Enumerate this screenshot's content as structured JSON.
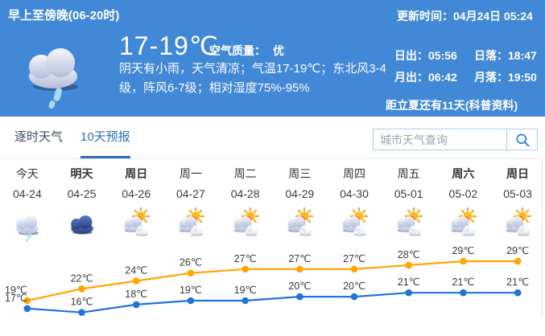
{
  "banner": {
    "period_label": "早上至傍晚(06-20时)",
    "weather_icon": "rain-cloud-icon",
    "temp_range": "17-19℃",
    "air_quality_label": "空气质量：",
    "air_quality_value": "优",
    "description": "阴天有小雨，天气清凉；气温17-19℃；东北风3-4级，阵风6-7级；相对湿度75%-95%",
    "update_time": "更新时间：04月24日 05:24",
    "sunrise": "日出：05:56",
    "sunset": "日落：18:47",
    "moonrise": "月出：06:42",
    "moonset": "月落：19:50",
    "solar_term_note": "距立夏还有11天",
    "solar_term_link": "(科普资料)"
  },
  "tabs": {
    "hourly": "逐时天气",
    "ten_day": "10天预报",
    "active": "10天预报"
  },
  "search": {
    "placeholder": "城市天气查询",
    "icon": "search-icon"
  },
  "forecast": {
    "columns": [
      {
        "weekday": "今天",
        "date": "04-24",
        "icon": "light-rain-icon",
        "bold": false
      },
      {
        "weekday": "明天",
        "date": "04-25",
        "icon": "overcast-icon",
        "bold": true
      },
      {
        "weekday": "周日",
        "date": "04-26",
        "icon": "sun-cloud-icon",
        "bold": true
      },
      {
        "weekday": "周一",
        "date": "04-27",
        "icon": "sun-cloud-icon",
        "bold": false
      },
      {
        "weekday": "周二",
        "date": "04-28",
        "icon": "sun-cloud-icon",
        "bold": false
      },
      {
        "weekday": "周三",
        "date": "04-29",
        "icon": "sun-cloud-icon",
        "bold": false
      },
      {
        "weekday": "周四",
        "date": "04-30",
        "icon": "sun-cloud-icon",
        "bold": false
      },
      {
        "weekday": "周五",
        "date": "05-01",
        "icon": "sun-cloud-icon",
        "bold": false
      },
      {
        "weekday": "周六",
        "date": "05-02",
        "icon": "sun-cloud-icon",
        "bold": true
      },
      {
        "weekday": "周日",
        "date": "05-03",
        "icon": "sun-cloud-icon",
        "bold": true
      }
    ]
  },
  "chart_data": {
    "type": "line",
    "categories": [
      "04-24",
      "04-25",
      "04-26",
      "04-27",
      "04-28",
      "04-29",
      "04-30",
      "05-01",
      "05-02",
      "05-03"
    ],
    "series": [
      {
        "name": "high-temp",
        "color": "#ffa400",
        "values": [
          19,
          22,
          24,
          26,
          27,
          27,
          27,
          28,
          29,
          29
        ]
      },
      {
        "name": "low-temp",
        "color": "#1f74d4",
        "values": [
          17,
          16,
          18,
          19,
          19,
          20,
          20,
          21,
          21,
          21
        ]
      }
    ],
    "unit": "℃",
    "ylim": [
      15,
      31
    ],
    "grid": false,
    "legend": "none",
    "point_labels": true
  },
  "colors": {
    "banner_bg": "#4188d7",
    "tab_active": "#2d6db8",
    "high_line": "#ffa400",
    "low_line": "#1f74d4"
  }
}
